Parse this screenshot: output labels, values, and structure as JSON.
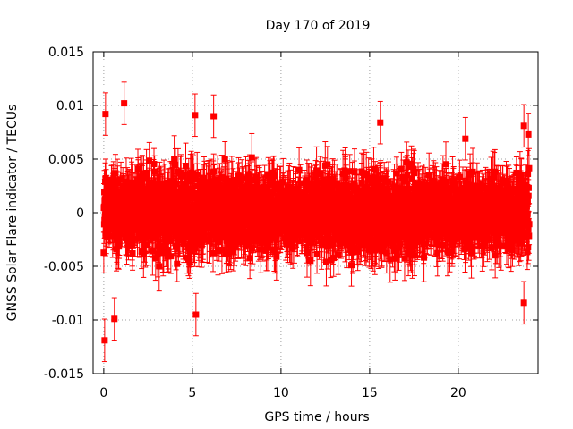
{
  "chart_data": {
    "type": "scatter",
    "title": "Day 170 of 2019",
    "xlabel": "GPS time / hours",
    "ylabel": "GNSS Solar Flare indicator / TECUs",
    "xlim": [
      -0.6,
      24.5
    ],
    "ylim": [
      -0.015,
      0.015
    ],
    "xticks": [
      0,
      5,
      10,
      15,
      20
    ],
    "xtick_labels": [
      "0",
      "5",
      "10",
      "15",
      "20"
    ],
    "yticks": [
      -0.015,
      -0.01,
      -0.005,
      0,
      0.005,
      0.01,
      0.015
    ],
    "ytick_labels": [
      "-0.015",
      "-0.01",
      "-0.005",
      "0",
      "0.005",
      "0.01",
      "0.015"
    ],
    "grid": true,
    "series": [
      {
        "name": "solar flare indicator",
        "color": "#ff0000",
        "marker": "square",
        "error_bars": true,
        "x_start": 0.0,
        "x_end": 24.0,
        "n_points": 2880,
        "typical_std": 0.0028,
        "typical_error": 0.0018,
        "notable_points": [
          {
            "x": 0.05,
            "y": -0.0119
          },
          {
            "x": 0.1,
            "y": 0.0092
          },
          {
            "x": 0.6,
            "y": -0.0099
          },
          {
            "x": 1.15,
            "y": 0.0102
          },
          {
            "x": 5.15,
            "y": 0.0091
          },
          {
            "x": 5.2,
            "y": -0.0095
          },
          {
            "x": 6.2,
            "y": 0.009
          },
          {
            "x": 15.6,
            "y": 0.0084
          },
          {
            "x": 20.4,
            "y": 0.0069
          },
          {
            "x": 23.7,
            "y": 0.0081
          },
          {
            "x": 23.7,
            "y": -0.0084
          },
          {
            "x": 23.95,
            "y": 0.0073
          }
        ]
      }
    ]
  }
}
